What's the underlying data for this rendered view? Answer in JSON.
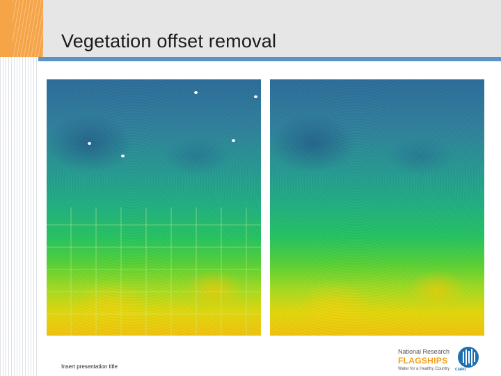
{
  "slide": {
    "title": "Vegetation offset removal",
    "footer": "Insert presentation title"
  },
  "images": {
    "left": {
      "icon": "vegetation-raster-before"
    },
    "right": {
      "icon": "vegetation-raster-after"
    }
  },
  "logo": {
    "line1": "National Research",
    "line2": "FLAGSHIPS",
    "line3": "Water for a Healthy Country",
    "org": "CSIRO",
    "icon": "csiro-logo-icon"
  },
  "colors": {
    "accent_orange": "#f5a447",
    "title_rule": "#5b93c7",
    "header_band": "#e6e6e6"
  }
}
